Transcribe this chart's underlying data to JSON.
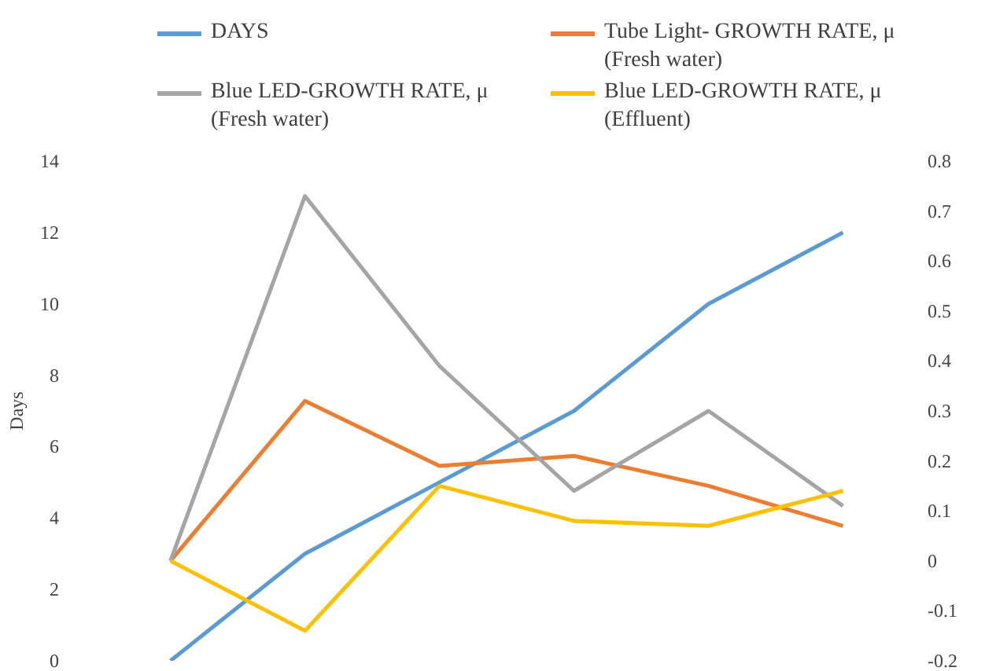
{
  "chart_data": {
    "type": "line",
    "categories": [
      null,
      null,
      null,
      null,
      null,
      null
    ],
    "ylabel": "Days",
    "ylim": [
      0,
      14
    ],
    "yticks": [
      0,
      2,
      4,
      6,
      8,
      10,
      12,
      14
    ],
    "y2lim": [
      -0.2,
      0.8
    ],
    "y2ticks": [
      {
        "value": -0.2,
        "label": "-0.2"
      },
      {
        "value": -0.1,
        "label": "-0.1"
      },
      0,
      0.1,
      0.2,
      0.3,
      0.4,
      0.5,
      0.6,
      0.7,
      0.8
    ],
    "grid": false,
    "legend": "top",
    "marker": "none",
    "line_style": "solid",
    "series": [
      {
        "name": "DAYS",
        "color": "#5b9bd5",
        "values": [
          0,
          3,
          5,
          7,
          10,
          12
        ]
      },
      {
        "name": "Tube Light- GROWTH RATE, μ (Fresh water)",
        "color": "#ed7d31",
        "axis": "y2",
        "values": [
          0,
          0.32,
          0.19,
          0.21,
          0.15,
          0.07
        ]
      },
      {
        "name": "Blue LED-GROWTH RATE, μ (Fresh water)",
        "color": "#a5a5a5",
        "axis": "y2",
        "values": [
          0,
          0.73,
          0.39,
          0.14,
          0.3,
          0.11
        ]
      },
      {
        "name": "Blue LED-GROWTH RATE, μ (Effluent)",
        "color": "#ffc000",
        "axis": "y2",
        "values": [
          0,
          -0.14,
          0.15,
          0.08,
          0.07,
          0.14
        ]
      }
    ]
  }
}
